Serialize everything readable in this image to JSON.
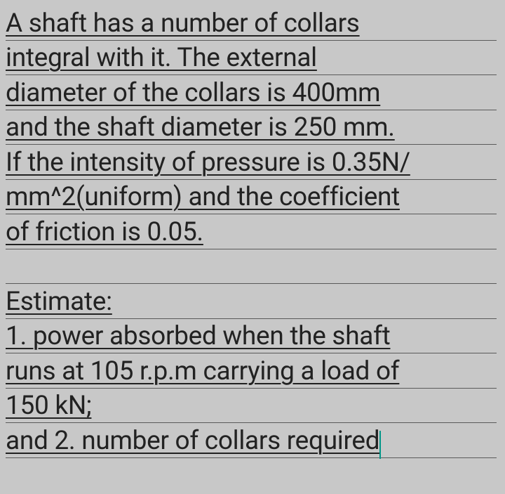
{
  "document": {
    "background_color": "#c8c8c8",
    "text_color": "#222222",
    "line_color": "#5a5a5a",
    "cursor_color": "#009688",
    "font_size": 37,
    "line_height": 49.5,
    "lines": [
      "A shaft has a number of collars",
      "integral with it. The external",
      "diameter of the collars is 400mm",
      "and the shaft diameter is 250 mm.",
      "If the intensity of pressure is 0.35N/",
      "mm^2(uniform) and the coefficient",
      "of friction is 0.05.",
      "",
      "Estimate:",
      "1. power absorbed when the shaft",
      "runs at 105 r.p.m carrying a load of",
      "150 kN;",
      "and 2. number of collars required"
    ],
    "cursor_line_index": 12
  }
}
